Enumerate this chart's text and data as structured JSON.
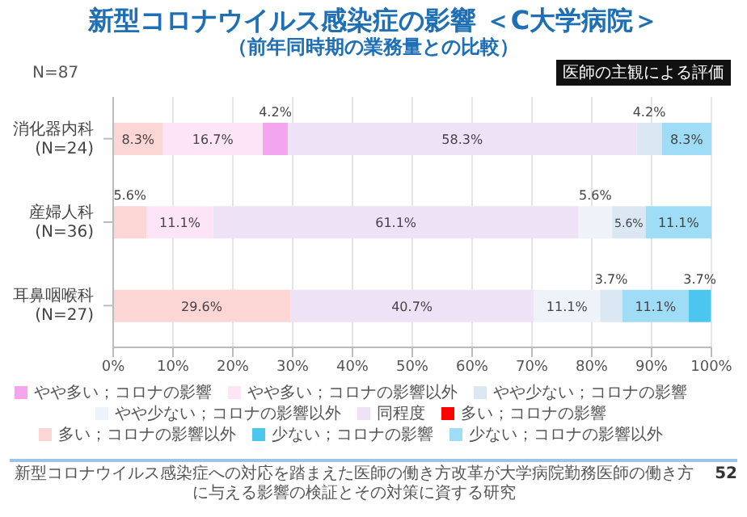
{
  "chart_data": {
    "type": "bar",
    "orientation": "horizontal",
    "stacked": true,
    "title": "新型コロナウイルス感染症の影響 ＜C大学病院＞",
    "subtitle": "（前年同時期の業務量との比較）",
    "categories": [
      "消化器内科\n(N=24)",
      "産婦人科\n(N=36)",
      "耳鼻咽喉科\n(N=27)"
    ],
    "series": [
      {
        "name": "多い；コロナの影響以外",
        "color": "#fcd5d5",
        "values": [
          8.3,
          5.6,
          29.6
        ],
        "value_labels": [
          "8.3%",
          "5.6%",
          "29.6%"
        ]
      },
      {
        "name": "多い；コロナの影響",
        "color": "#ff0000",
        "values": [
          0,
          0,
          0
        ],
        "value_labels": [
          null,
          null,
          null
        ]
      },
      {
        "name": "やや多い；コロナの影響以外",
        "color": "#fde4f6",
        "values": [
          16.7,
          11.1,
          0
        ],
        "value_labels": [
          "16.7%",
          "11.1%",
          null
        ]
      },
      {
        "name": "やや多い；コロナの影響",
        "color": "#f3a6ee",
        "values": [
          4.2,
          0,
          0
        ],
        "value_labels": [
          "4.2%",
          null,
          null
        ]
      },
      {
        "name": "同程度",
        "color": "#eee2f7",
        "values": [
          58.3,
          61.1,
          40.7
        ],
        "value_labels": [
          "58.3%",
          "61.1%",
          "40.7%"
        ]
      },
      {
        "name": "やや少ない；コロナの影響以外",
        "color": "#eef3f9",
        "values": [
          0,
          5.6,
          11.1
        ],
        "value_labels": [
          null,
          "5.6%",
          "11.1%"
        ]
      },
      {
        "name": "やや少ない；コロナの影響",
        "color": "#dbe7f2",
        "values": [
          4.2,
          5.6,
          3.7
        ],
        "value_labels": [
          "4.2%",
          "5.6%",
          "3.7%"
        ]
      },
      {
        "name": "少ない；コロナの影響以外",
        "color": "#9fdcf6",
        "values": [
          8.3,
          11.1,
          11.1
        ],
        "value_labels": [
          "8.3%",
          "11.1%",
          "11.1%"
        ]
      },
      {
        "name": "少ない；コロナの影響",
        "color": "#4cc6ef",
        "values": [
          0,
          0,
          3.7
        ],
        "value_labels": [
          null,
          null,
          "3.7%"
        ]
      }
    ],
    "xlim": [
      0,
      100
    ],
    "xticks": [
      {
        "value": 0,
        "label": "0%"
      },
      {
        "value": 10,
        "label": "10%"
      },
      {
        "value": 20,
        "label": "20%"
      },
      {
        "value": 30,
        "label": "30%"
      },
      {
        "value": 40,
        "label": "40%"
      },
      {
        "value": 50,
        "label": "50%"
      },
      {
        "value": 60,
        "label": "60%"
      },
      {
        "value": 70,
        "label": "70%"
      },
      {
        "value": 80,
        "label": "80%"
      },
      {
        "value": 90,
        "label": "90%"
      },
      {
        "value": 100,
        "label": "100%"
      }
    ],
    "grid": "x",
    "legend": "bottom",
    "annotations": [
      "医師の主観による評価",
      "N=87",
      "新型コロナウイルス感染症への対応を踏まえた医師の働き方改革が大学病院勤務医師の働き方に与える影響の検証とその対策に資する研究",
      "52"
    ]
  }
}
